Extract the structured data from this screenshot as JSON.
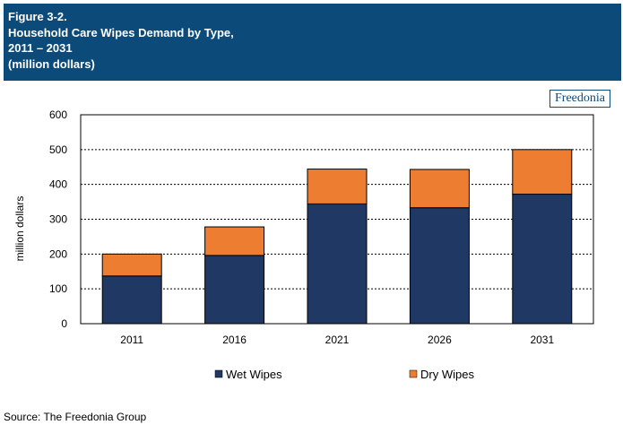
{
  "header": {
    "line1": "Figure 3-2.",
    "line2": "Household Care Wipes Demand by Type,",
    "line3": "2011 – 2031",
    "line4": "(million dollars)"
  },
  "logo_text": "Freedonia",
  "source": "Source: The Freedonia Group",
  "colors": {
    "header_bg": "#0c4a7a",
    "wet": "#1f3864",
    "dry": "#ed7d31"
  },
  "chart_data": {
    "type": "bar",
    "stacked": true,
    "categories": [
      "2011",
      "2016",
      "2021",
      "2026",
      "2031"
    ],
    "series": [
      {
        "name": "Wet Wipes",
        "values": [
          137,
          196,
          344,
          333,
          372
        ],
        "color": "#1f3864"
      },
      {
        "name": "Dry Wipes",
        "values": [
          63,
          82,
          100,
          110,
          128
        ],
        "color": "#ed7d31"
      }
    ],
    "ylabel": "million dollars",
    "ylim": [
      0,
      600
    ],
    "yticks": [
      0,
      100,
      200,
      300,
      400,
      500,
      600
    ],
    "grid": true,
    "legend": "bottom"
  }
}
